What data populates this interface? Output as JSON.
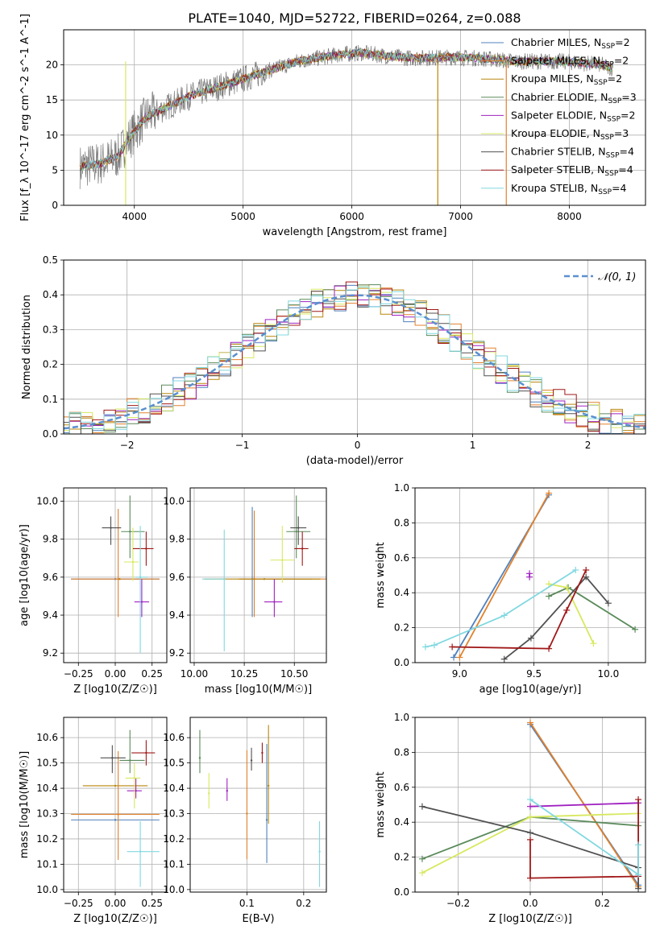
{
  "figure_title": "PLATE=1040, MJD=52722, FIBERID=0264, z=0.088",
  "colors": {
    "grid": "#b0b0b0",
    "Chabrier MILES": "#4f81bd",
    "Salpeter MILES": "#e1812c",
    "Kroupa MILES": "#b8860b",
    "Chabrier ELODIE": "#5a8a5a",
    "Salpeter ELODIE": "#a020c0",
    "Kroupa ELODIE": "#d8e860",
    "Chabrier STELIB": "#505050",
    "Salpeter STELIB": "#a01818",
    "Kroupa STELIB": "#80d8e0",
    "Gaussian": "#5b8fd0"
  },
  "chart_data": [
    {
      "id": "spectrum",
      "type": "line",
      "title": "",
      "xlabel": "wavelength [Angstrom, rest frame]",
      "ylabel": "Flux [f_λ 10^-17 erg cm^-2 s^-1 A^-1]",
      "xlim": [
        3350,
        8700
      ],
      "ylim": [
        0,
        25
      ],
      "xticks": [
        4000,
        5000,
        6000,
        7000,
        8000
      ],
      "yticks": [
        0,
        5,
        10,
        15,
        20
      ],
      "legend_position": "right",
      "legend": [
        {
          "key": "Chabrier MILES",
          "label": "Chabrier MILES, N",
          "sub": "SSP",
          "suffix": "=2"
        },
        {
          "key": "Salpeter MILES",
          "label": "Salpeter MILES, N",
          "sub": "SSP",
          "suffix": "=2"
        },
        {
          "key": "Kroupa MILES",
          "label": "Kroupa MILES, N",
          "sub": "SSP",
          "suffix": "=2"
        },
        {
          "key": "Chabrier ELODIE",
          "label": "Chabrier ELODIE, N",
          "sub": "SSP",
          "suffix": "=3"
        },
        {
          "key": "Salpeter ELODIE",
          "label": "Salpeter ELODIE, N",
          "sub": "SSP",
          "suffix": "=2"
        },
        {
          "key": "Kroupa ELODIE",
          "label": "Kroupa ELODIE, N",
          "sub": "SSP",
          "suffix": "=3"
        },
        {
          "key": "Chabrier STELIB",
          "label": "Chabrier STELIB, N",
          "sub": "SSP",
          "suffix": "=4"
        },
        {
          "key": "Salpeter STELIB",
          "label": "Salpeter STELIB, N",
          "sub": "SSP",
          "suffix": "=4"
        },
        {
          "key": "Kroupa STELIB",
          "label": "Kroupa STELIB, N",
          "sub": "SSP",
          "suffix": "=4"
        }
      ],
      "continuum": {
        "x": [
          3500,
          3700,
          3850,
          3950,
          4100,
          4300,
          4500,
          4700,
          4900,
          5100,
          5300,
          5500,
          5700,
          5900,
          6100,
          6300,
          6500,
          6700,
          6900,
          7100,
          7300,
          7500,
          7700,
          7900,
          8100,
          8300,
          8400
        ],
        "y": [
          5.5,
          6.0,
          7.0,
          9.5,
          12.5,
          14.0,
          15.5,
          16.5,
          17.5,
          18.5,
          19.5,
          20.5,
          21.0,
          21.5,
          21.7,
          21.3,
          21.0,
          21.0,
          21.1,
          21.0,
          20.8,
          20.5,
          20.5,
          20.5,
          20.3,
          20.0,
          19.5
        ]
      },
      "spikes": [
        {
          "x": 6790,
          "y_low": 0,
          "series": "Kroupa MILES"
        },
        {
          "x": 7420,
          "y_low": 0,
          "series": "Salpeter MILES"
        },
        {
          "x": 3920,
          "y_low": 0,
          "series": "Kroupa ELODIE"
        }
      ]
    },
    {
      "id": "residuals",
      "type": "histogram",
      "xlabel": "(data-model)/error",
      "ylabel": "Normed distribution",
      "xlim": [
        -2.55,
        2.5
      ],
      "ylim": [
        0,
        0.5
      ],
      "xticks": [
        -2,
        -1,
        0,
        1,
        2
      ],
      "yticks": [
        0.0,
        0.1,
        0.2,
        0.3,
        0.4,
        0.5
      ],
      "legend_position": "top-right",
      "legend_label": "𝒩(0, 1)",
      "bin_width": 0.1
    },
    {
      "id": "age_vs_Z",
      "type": "scatter",
      "xlabel": "Z [log10(Z/Z☉)]",
      "ylabel": "age  [log10(age/yr)]",
      "xlim": [
        -0.35,
        0.35
      ],
      "ylim": [
        9.15,
        10.07
      ],
      "xticks": [
        -0.25,
        0.0,
        0.25
      ],
      "yticks": [
        9.2,
        9.4,
        9.6,
        9.8,
        10.0
      ],
      "points": [
        {
          "series": "Chabrier MILES",
          "x": 0.0,
          "y": 9.59,
          "xerr": [
            0.3,
            0.3
          ],
          "yerr": [
            0.0,
            0.0
          ]
        },
        {
          "series": "Salpeter MILES",
          "x": 0.02,
          "y": 9.59,
          "xerr": [
            0.32,
            0.28
          ],
          "yerr": [
            0.2,
            0.37
          ]
        },
        {
          "series": "Kroupa MILES",
          "x": 0.03,
          "y": 9.59,
          "xerr": [
            0.0,
            0.0
          ],
          "yerr": [
            0.0,
            0.0
          ]
        },
        {
          "series": "Chabrier ELODIE",
          "x": 0.1,
          "y": 9.84,
          "xerr": [
            0.06,
            0.1
          ],
          "yerr": [
            0.14,
            0.19
          ]
        },
        {
          "series": "Salpeter ELODIE",
          "x": 0.18,
          "y": 9.47,
          "xerr": [
            0.05,
            0.05
          ],
          "yerr": [
            0.08,
            0.12
          ]
        },
        {
          "series": "Kroupa ELODIE",
          "x": 0.12,
          "y": 9.68,
          "xerr": [
            0.06,
            0.04
          ],
          "yerr": [
            0.1,
            0.18
          ]
        },
        {
          "series": "Chabrier STELIB",
          "x": -0.03,
          "y": 9.86,
          "xerr": [
            0.06,
            0.07
          ],
          "yerr": [
            0.09,
            0.06
          ]
        },
        {
          "series": "Salpeter STELIB",
          "x": 0.21,
          "y": 9.75,
          "xerr": [
            0.09,
            0.05
          ],
          "yerr": [
            0.09,
            0.09
          ]
        },
        {
          "series": "Kroupa STELIB",
          "x": 0.17,
          "y": 9.6,
          "xerr": [
            0.03,
            0.05
          ],
          "yerr": [
            0.4,
            0.27
          ]
        }
      ]
    },
    {
      "id": "age_vs_mass",
      "type": "scatter",
      "xlabel": "mass [log10(M/M☉)]",
      "ylabel": "",
      "xlim": [
        9.98,
        10.66
      ],
      "ylim": [
        9.15,
        10.07
      ],
      "xticks": [
        10.0,
        10.25,
        10.5
      ],
      "yticks": [
        9.2,
        9.4,
        9.6,
        9.8,
        10.0
      ],
      "points": [
        {
          "series": "Chabrier MILES",
          "x": 10.29,
          "y": 9.59,
          "xerr": [
            0.06,
            0.3
          ],
          "yerr": [
            0.2,
            0.38
          ]
        },
        {
          "series": "Salpeter MILES",
          "x": 10.3,
          "y": 9.59,
          "xerr": [
            0.08,
            0.4
          ],
          "yerr": [
            0.2,
            0.36
          ]
        },
        {
          "series": "Kroupa MILES",
          "x": 10.35,
          "y": 9.59,
          "xerr": [
            0.3,
            0.28
          ],
          "yerr": [
            0.0,
            0.0
          ]
        },
        {
          "series": "Chabrier ELODIE",
          "x": 10.51,
          "y": 9.84,
          "xerr": [
            0.05,
            0.07
          ],
          "yerr": [
            0.14,
            0.19
          ]
        },
        {
          "series": "Salpeter ELODIE",
          "x": 10.4,
          "y": 9.47,
          "xerr": [
            0.05,
            0.04
          ],
          "yerr": [
            0.08,
            0.12
          ]
        },
        {
          "series": "Kroupa ELODIE",
          "x": 10.44,
          "y": 9.69,
          "xerr": [
            0.06,
            0.06
          ],
          "yerr": [
            0.12,
            0.18
          ]
        },
        {
          "series": "Chabrier STELIB",
          "x": 10.52,
          "y": 9.86,
          "xerr": [
            0.04,
            0.04
          ],
          "yerr": [
            0.09,
            0.06
          ]
        },
        {
          "series": "Salpeter STELIB",
          "x": 10.54,
          "y": 9.75,
          "xerr": [
            0.04,
            0.03
          ],
          "yerr": [
            0.09,
            0.09
          ]
        },
        {
          "series": "Kroupa STELIB",
          "x": 10.15,
          "y": 9.59,
          "xerr": [
            0.11,
            0.0
          ],
          "yerr": [
            0.38,
            0.26
          ]
        }
      ]
    },
    {
      "id": "weight_vs_age",
      "type": "line",
      "xlabel": "age  [log10(age/yr)]",
      "ylabel": "mass weight",
      "xlim": [
        8.7,
        10.25
      ],
      "ylim": [
        0.0,
        1.0
      ],
      "xticks": [
        9.0,
        9.5,
        10.0
      ],
      "yticks": [
        0.0,
        0.2,
        0.4,
        0.6,
        0.8,
        1.0
      ],
      "series": [
        {
          "name": "Chabrier MILES",
          "x": [
            8.96,
            9.6
          ],
          "y": [
            0.03,
            0.96
          ]
        },
        {
          "name": "Salpeter MILES",
          "x": [
            9.0,
            9.6
          ],
          "y": [
            0.03,
            0.97
          ]
        },
        {
          "name": "Chabrier ELODIE",
          "x": [
            9.6,
            9.73,
            10.18
          ],
          "y": [
            0.38,
            0.43,
            0.19
          ]
        },
        {
          "name": "Salpeter ELODIE",
          "x": [
            9.47,
            9.47
          ],
          "y": [
            0.49,
            0.51
          ]
        },
        {
          "name": "Kroupa ELODIE",
          "x": [
            9.6,
            9.72,
            9.9
          ],
          "y": [
            0.45,
            0.43,
            0.11
          ]
        },
        {
          "name": "Chabrier STELIB",
          "x": [
            9.3,
            9.48,
            9.85,
            10.0
          ],
          "y": [
            0.02,
            0.14,
            0.49,
            0.34
          ]
        },
        {
          "name": "Salpeter STELIB",
          "x": [
            8.95,
            9.6,
            9.72,
            9.85
          ],
          "y": [
            0.09,
            0.08,
            0.3,
            0.53
          ]
        },
        {
          "name": "Kroupa STELIB",
          "x": [
            8.77,
            8.83,
            9.3,
            9.78
          ],
          "y": [
            0.09,
            0.1,
            0.27,
            0.53
          ]
        }
      ]
    },
    {
      "id": "mass_vs_Z",
      "type": "scatter",
      "xlabel": "Z [log10(Z/Z☉)]",
      "ylabel": "mass [log10(M/M☉)]",
      "xlim": [
        -0.35,
        0.35
      ],
      "ylim": [
        9.99,
        10.68
      ],
      "xticks": [
        -0.25,
        0.0,
        0.25
      ],
      "yticks": [
        10.0,
        10.1,
        10.2,
        10.3,
        10.4,
        10.5,
        10.6
      ],
      "points": [
        {
          "series": "Chabrier MILES",
          "x": 0.0,
          "y": 10.275,
          "xerr": [
            0.3,
            0.3
          ],
          "yerr": [
            0.0,
            0.0
          ]
        },
        {
          "series": "Salpeter MILES",
          "x": 0.02,
          "y": 10.297,
          "xerr": [
            0.32,
            0.28
          ],
          "yerr": [
            0.18,
            0.25
          ]
        },
        {
          "series": "Kroupa MILES",
          "x": 0.0,
          "y": 10.41,
          "xerr": [
            0.22,
            0.22
          ],
          "yerr": [
            0.0,
            0.0
          ]
        },
        {
          "series": "Chabrier ELODIE",
          "x": 0.1,
          "y": 10.51,
          "xerr": [
            0.07,
            0.1
          ],
          "yerr": [
            0.05,
            0.12
          ]
        },
        {
          "series": "Salpeter ELODIE",
          "x": 0.14,
          "y": 10.39,
          "xerr": [
            0.06,
            0.04
          ],
          "yerr": [
            0.03,
            0.05
          ]
        },
        {
          "series": "Kroupa ELODIE",
          "x": 0.13,
          "y": 10.44,
          "xerr": [
            0.06,
            0.04
          ],
          "yerr": [
            0.12,
            0.06
          ]
        },
        {
          "series": "Chabrier STELIB",
          "x": -0.02,
          "y": 10.52,
          "xerr": [
            0.08,
            0.09
          ],
          "yerr": [
            0.06,
            0.05
          ]
        },
        {
          "series": "Salpeter STELIB",
          "x": 0.21,
          "y": 10.54,
          "xerr": [
            0.1,
            0.06
          ],
          "yerr": [
            0.05,
            0.05
          ]
        },
        {
          "series": "Kroupa STELIB",
          "x": 0.17,
          "y": 10.15,
          "xerr": [
            0.09,
            0.13
          ],
          "yerr": [
            0.14,
            0.12
          ]
        }
      ]
    },
    {
      "id": "mass_vs_EBV",
      "type": "scatter",
      "xlabel": "E(B-V)",
      "ylabel": "",
      "xlim": [
        0.0,
        0.24
      ],
      "ylim": [
        9.99,
        10.68
      ],
      "xticks": [
        0.1,
        0.2
      ],
      "yticks": [
        10.0,
        10.1,
        10.2,
        10.3,
        10.4,
        10.5,
        10.6
      ],
      "points": [
        {
          "series": "Chabrier ELODIE",
          "x": 0.017,
          "y": 10.52,
          "xerr": [
            0,
            0
          ],
          "yerr": [
            0.06,
            0.11
          ]
        },
        {
          "series": "Kroupa ELODIE",
          "x": 0.033,
          "y": 10.38,
          "xerr": [
            0,
            0
          ],
          "yerr": [
            0.06,
            0.08
          ]
        },
        {
          "series": "Salpeter ELODIE",
          "x": 0.065,
          "y": 10.39,
          "xerr": [
            0,
            0
          ],
          "yerr": [
            0.04,
            0.05
          ]
        },
        {
          "series": "Salpeter MILES",
          "x": 0.1,
          "y": 10.3,
          "xerr": [
            0,
            0
          ],
          "yerr": [
            0.18,
            0.25
          ]
        },
        {
          "series": "Chabrier STELIB",
          "x": 0.108,
          "y": 10.51,
          "xerr": [
            0,
            0
          ],
          "yerr": [
            0.04,
            0.05
          ]
        },
        {
          "series": "Salpeter STELIB",
          "x": 0.127,
          "y": 10.54,
          "xerr": [
            0,
            0
          ],
          "yerr": [
            0.04,
            0.04
          ]
        },
        {
          "series": "Chabrier MILES",
          "x": 0.135,
          "y": 10.275,
          "xerr": [
            0,
            0
          ],
          "yerr": [
            0.17,
            0.3
          ]
        },
        {
          "series": "Kroupa MILES",
          "x": 0.138,
          "y": 10.41,
          "xerr": [
            0,
            0
          ],
          "yerr": [
            0.15,
            0.24
          ]
        },
        {
          "series": "Kroupa STELIB",
          "x": 0.228,
          "y": 10.15,
          "xerr": [
            0,
            0
          ],
          "yerr": [
            0.14,
            0.12
          ]
        }
      ]
    },
    {
      "id": "weight_vs_Z",
      "type": "line",
      "xlabel": "Z [log10(Z/Z☉)]",
      "ylabel": "mass weight",
      "xlim": [
        -0.32,
        0.32
      ],
      "ylim": [
        0.0,
        1.0
      ],
      "xticks": [
        -0.2,
        0.0,
        0.2
      ],
      "yticks": [
        0.0,
        0.2,
        0.4,
        0.6,
        0.8,
        1.0
      ],
      "series": [
        {
          "name": "Chabrier MILES",
          "x": [
            0.0,
            0.3
          ],
          "y": [
            0.96,
            0.04
          ]
        },
        {
          "name": "Salpeter MILES",
          "x": [
            0.0,
            0.3
          ],
          "y": [
            0.97,
            0.03
          ]
        },
        {
          "name": "Chabrier ELODIE",
          "x": [
            -0.3,
            0.0,
            0.3
          ],
          "y": [
            0.19,
            0.43,
            0.38
          ]
        },
        {
          "name": "Salpeter ELODIE",
          "x": [
            0.0,
            0.3
          ],
          "y": [
            0.49,
            0.51
          ]
        },
        {
          "name": "Kroupa ELODIE",
          "x": [
            -0.3,
            0.0,
            0.3
          ],
          "y": [
            0.11,
            0.43,
            0.45
          ]
        },
        {
          "name": "Chabrier STELIB",
          "x": [
            -0.3,
            0.0,
            0.3,
            0.3
          ],
          "y": [
            0.49,
            0.34,
            0.14,
            0.02
          ]
        },
        {
          "name": "Salpeter STELIB",
          "x": [
            0.0,
            0.0,
            0.3,
            0.3
          ],
          "y": [
            0.3,
            0.08,
            0.09,
            0.53
          ]
        },
        {
          "name": "Kroupa STELIB",
          "x": [
            0.0,
            0.3,
            0.3
          ],
          "y": [
            0.53,
            0.1,
            0.27
          ]
        }
      ]
    }
  ]
}
